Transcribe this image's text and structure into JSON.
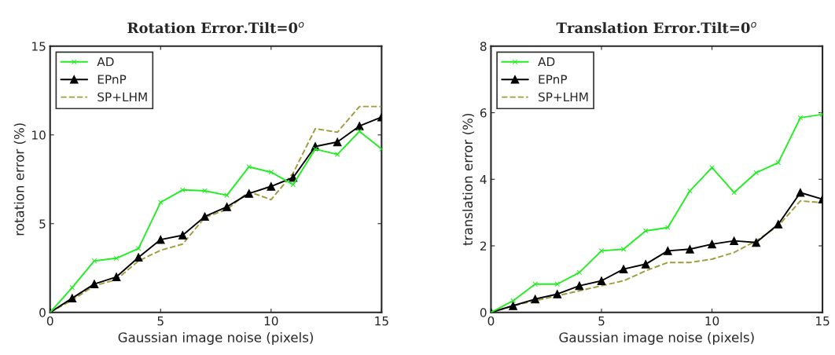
{
  "chart_data": [
    {
      "type": "line",
      "title": "Rotation Error.Tilt=0$^{o}$",
      "xlabel": "Gaussian image noise (pixels)",
      "ylabel": "rotation error (%)",
      "x": [
        0,
        1,
        2,
        3,
        4,
        5,
        6,
        7,
        8,
        9,
        10,
        11,
        12,
        13,
        14,
        15
      ],
      "xlim": [
        0,
        15
      ],
      "xticks": [
        0,
        5,
        10,
        15
      ],
      "ylim": [
        0,
        15
      ],
      "yticks": [
        0,
        5,
        10,
        15
      ],
      "legend": "top left",
      "series": [
        {
          "name": "AD",
          "color": "#22ee22",
          "marker": "cross",
          "line_style": "solid",
          "values": [
            0,
            1.4,
            2.9,
            3.05,
            3.6,
            6.2,
            6.9,
            6.85,
            6.6,
            8.2,
            7.9,
            7.2,
            9.2,
            8.9,
            10.2,
            9.2
          ]
        },
        {
          "name": "EPnP",
          "color": "#000000",
          "marker": "triangle",
          "line_style": "solid",
          "values": [
            0,
            0.8,
            1.6,
            2.0,
            3.1,
            4.1,
            4.35,
            5.4,
            5.95,
            6.7,
            7.1,
            7.6,
            9.35,
            9.6,
            10.5,
            11.0
          ]
        },
        {
          "name": "SP+LHM",
          "color": "#a39a3a",
          "marker": "none",
          "line_style": "dashed",
          "values": [
            0,
            0.7,
            1.5,
            1.85,
            2.9,
            3.5,
            3.85,
            5.35,
            5.8,
            6.8,
            6.35,
            7.85,
            10.35,
            10.15,
            11.6,
            11.6
          ]
        }
      ]
    },
    {
      "type": "line",
      "title": "Translation Error.Tilt=0$^{o}$",
      "xlabel": "Gaussian image noise (pixels)",
      "ylabel": "translation error (%)",
      "x": [
        0,
        1,
        2,
        3,
        4,
        5,
        6,
        7,
        8,
        9,
        10,
        11,
        12,
        13,
        14,
        15
      ],
      "xlim": [
        0,
        15
      ],
      "xticks": [
        0,
        5,
        10,
        15
      ],
      "ylim": [
        0,
        8
      ],
      "yticks": [
        0,
        2,
        4,
        6,
        8
      ],
      "legend": "top left",
      "series": [
        {
          "name": "AD",
          "color": "#22ee22",
          "marker": "cross",
          "line_style": "solid",
          "values": [
            0,
            0.35,
            0.85,
            0.85,
            1.2,
            1.85,
            1.9,
            2.45,
            2.55,
            3.65,
            4.35,
            3.6,
            4.2,
            4.5,
            5.85,
            5.95
          ]
        },
        {
          "name": "EPnP",
          "color": "#000000",
          "marker": "triangle",
          "line_style": "solid",
          "values": [
            0,
            0.2,
            0.4,
            0.55,
            0.8,
            0.95,
            1.3,
            1.45,
            1.85,
            1.9,
            2.05,
            2.15,
            2.1,
            2.65,
            3.6,
            3.4
          ]
        },
        {
          "name": "SP+LHM",
          "color": "#a39a3a",
          "marker": "none",
          "line_style": "dashed",
          "values": [
            0,
            0.2,
            0.35,
            0.5,
            0.65,
            0.8,
            0.95,
            1.25,
            1.5,
            1.5,
            1.6,
            1.8,
            2.15,
            2.6,
            3.35,
            3.3
          ]
        }
      ]
    }
  ]
}
